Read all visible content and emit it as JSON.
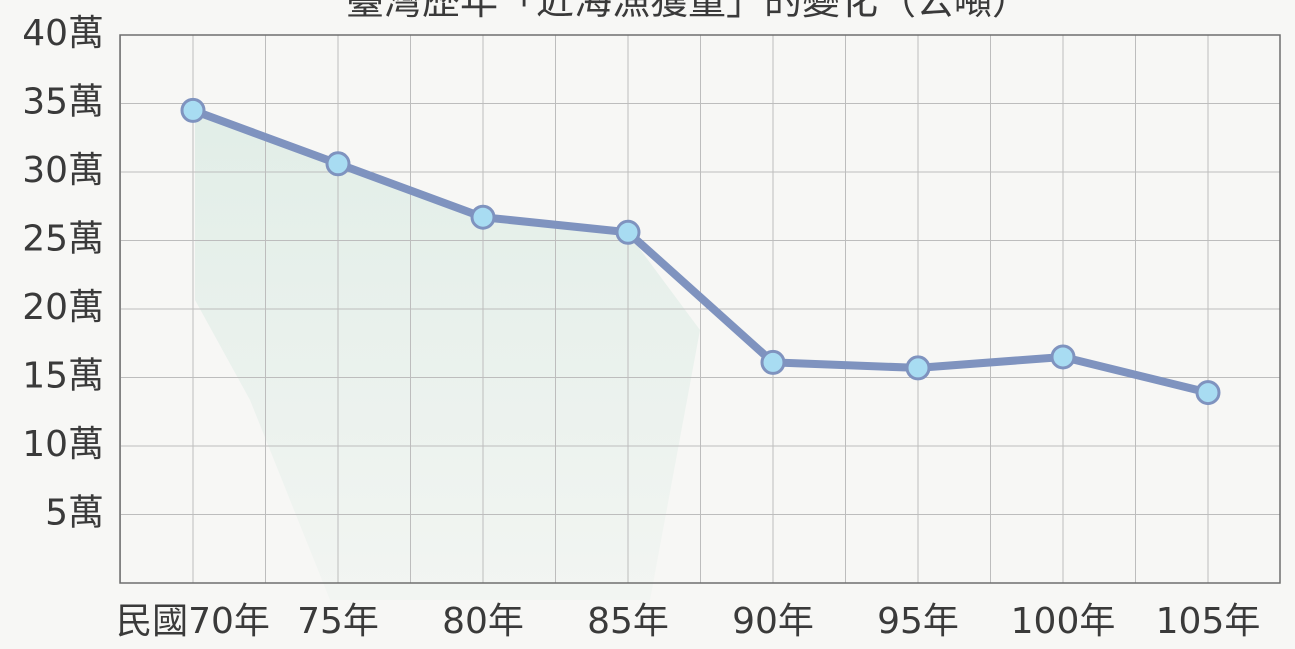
{
  "chart_data": {
    "type": "line",
    "title": "臺灣歷年「近海漁獲量」的變化（公噸）",
    "xlabel": "",
    "ylabel": "",
    "categories": [
      "民國70年",
      "75年",
      "80年",
      "85年",
      "90年",
      "95年",
      "100年",
      "105年"
    ],
    "series": [
      {
        "values": [
          345000,
          306000,
          267000,
          256000,
          161000,
          157000,
          165000,
          139000
        ]
      }
    ],
    "ylim": [
      0,
      400000
    ],
    "yticks": [
      {
        "value": 50000,
        "label": "5萬"
      },
      {
        "value": 100000,
        "label": "10萬"
      },
      {
        "value": 150000,
        "label": "15萬"
      },
      {
        "value": 200000,
        "label": "20萬"
      },
      {
        "value": 250000,
        "label": "25萬"
      },
      {
        "value": 300000,
        "label": "30萬"
      },
      {
        "value": 350000,
        "label": "35萬"
      },
      {
        "value": 400000,
        "label": "40萬"
      }
    ],
    "grid": true,
    "line_color": "#7f93bf",
    "marker_color": "#a8dcf2"
  }
}
